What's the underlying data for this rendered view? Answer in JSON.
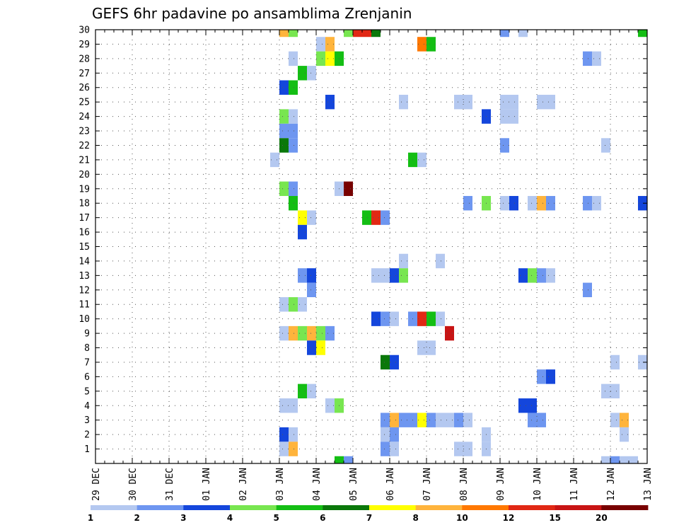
{
  "chart_data": {
    "type": "heatmap",
    "title": "GEFS 6hr padavine po ansamblima Zrenjanin",
    "x_tick_labels": [
      "29 DEC",
      "30 DEC",
      "31 DEC",
      "01 JAN",
      "02 JAN",
      "03 JAN",
      "04 JAN",
      "05 JAN",
      "06 JAN",
      "07 JAN",
      "08 JAN",
      "09 JAN",
      "10 JAN",
      "11 JAN",
      "12 JAN",
      "13 JAN"
    ],
    "x_range_days": [
      0,
      15
    ],
    "y_tick_labels": [
      "1",
      "2",
      "3",
      "4",
      "5",
      "6",
      "7",
      "8",
      "9",
      "10",
      "11",
      "12",
      "13",
      "14",
      "15",
      "16",
      "17",
      "18",
      "19",
      "20",
      "21",
      "22",
      "23",
      "24",
      "25",
      "26",
      "27",
      "28",
      "29",
      "30"
    ],
    "y_range": [
      0,
      30
    ],
    "grid": "dotted",
    "colorbar": {
      "labels": [
        "1",
        "2",
        "3",
        "4",
        "5",
        "6",
        "7",
        "8",
        "10",
        "12",
        "15",
        "20"
      ],
      "colors": [
        "#b4c8f0",
        "#6e96f0",
        "#1446dc",
        "#78e650",
        "#14be14",
        "#0a780a",
        "#ffff00",
        "#ffb43c",
        "#ff7800",
        "#e12814",
        "#c81414",
        "#780000"
      ]
    },
    "cells": [
      {
        "m": 30,
        "d": 5.0,
        "c": 8
      },
      {
        "m": 30,
        "d": 5.25,
        "c": 4
      },
      {
        "m": 30,
        "d": 6.75,
        "c": 4
      },
      {
        "m": 30,
        "d": 7.0,
        "c": 10
      },
      {
        "m": 30,
        "d": 7.25,
        "c": 10
      },
      {
        "m": 30,
        "d": 7.5,
        "c": 6
      },
      {
        "m": 30,
        "d": 11.0,
        "c": 2
      },
      {
        "m": 30,
        "d": 11.5,
        "c": 1
      },
      {
        "m": 30,
        "d": 14.75,
        "c": 5
      },
      {
        "m": 30,
        "d": 15.0,
        "c": 8
      },
      {
        "m": 29,
        "d": 6.0,
        "c": 1
      },
      {
        "m": 29,
        "d": 6.25,
        "c": 8
      },
      {
        "m": 29,
        "d": 8.75,
        "c": 9
      },
      {
        "m": 29,
        "d": 9.0,
        "c": 5
      },
      {
        "m": 28,
        "d": 5.25,
        "c": 1
      },
      {
        "m": 28,
        "d": 6.0,
        "c": 4
      },
      {
        "m": 28,
        "d": 6.25,
        "c": 7
      },
      {
        "m": 28,
        "d": 6.5,
        "c": 5
      },
      {
        "m": 28,
        "d": 13.25,
        "c": 2
      },
      {
        "m": 28,
        "d": 13.5,
        "c": 1
      },
      {
        "m": 27,
        "d": 5.5,
        "c": 5
      },
      {
        "m": 27,
        "d": 5.75,
        "c": 1
      },
      {
        "m": 26,
        "d": 5.0,
        "c": 3
      },
      {
        "m": 26,
        "d": 5.25,
        "c": 5
      },
      {
        "m": 25,
        "d": 6.25,
        "c": 3
      },
      {
        "m": 25,
        "d": 8.25,
        "c": 1
      },
      {
        "m": 25,
        "d": 9.75,
        "c": 1
      },
      {
        "m": 25,
        "d": 10.0,
        "c": 1
      },
      {
        "m": 25,
        "d": 11.0,
        "c": 1
      },
      {
        "m": 25,
        "d": 11.25,
        "c": 1
      },
      {
        "m": 25,
        "d": 12.0,
        "c": 1
      },
      {
        "m": 25,
        "d": 12.25,
        "c": 1
      },
      {
        "m": 24,
        "d": 5.0,
        "c": 4
      },
      {
        "m": 24,
        "d": 5.25,
        "c": 1
      },
      {
        "m": 24,
        "d": 10.5,
        "c": 3
      },
      {
        "m": 24,
        "d": 11.0,
        "c": 1
      },
      {
        "m": 24,
        "d": 11.25,
        "c": 1
      },
      {
        "m": 23,
        "d": 5.0,
        "c": 2
      },
      {
        "m": 23,
        "d": 5.25,
        "c": 2
      },
      {
        "m": 22,
        "d": 5.0,
        "c": 6
      },
      {
        "m": 22,
        "d": 5.25,
        "c": 2
      },
      {
        "m": 22,
        "d": 11.0,
        "c": 2
      },
      {
        "m": 22,
        "d": 13.75,
        "c": 1
      },
      {
        "m": 21,
        "d": 4.75,
        "c": 1
      },
      {
        "m": 21,
        "d": 8.5,
        "c": 5
      },
      {
        "m": 21,
        "d": 8.75,
        "c": 1
      },
      {
        "m": 19,
        "d": 5.0,
        "c": 4
      },
      {
        "m": 19,
        "d": 5.25,
        "c": 2
      },
      {
        "m": 19,
        "d": 6.5,
        "c": 1
      },
      {
        "m": 19,
        "d": 6.75,
        "c": 12
      },
      {
        "m": 18,
        "d": 5.25,
        "c": 5
      },
      {
        "m": 18,
        "d": 10.0,
        "c": 2
      },
      {
        "m": 18,
        "d": 10.5,
        "c": 4
      },
      {
        "m": 18,
        "d": 11.0,
        "c": 1
      },
      {
        "m": 18,
        "d": 11.25,
        "c": 3
      },
      {
        "m": 18,
        "d": 11.75,
        "c": 1
      },
      {
        "m": 18,
        "d": 12.0,
        "c": 8
      },
      {
        "m": 18,
        "d": 12.25,
        "c": 2
      },
      {
        "m": 18,
        "d": 13.25,
        "c": 2
      },
      {
        "m": 18,
        "d": 13.5,
        "c": 1
      },
      {
        "m": 18,
        "d": 14.75,
        "c": 3
      },
      {
        "m": 18,
        "d": 15.0,
        "c": 4
      },
      {
        "m": 17,
        "d": 5.5,
        "c": 7
      },
      {
        "m": 17,
        "d": 5.75,
        "c": 1
      },
      {
        "m": 17,
        "d": 7.25,
        "c": 5
      },
      {
        "m": 17,
        "d": 7.5,
        "c": 10
      },
      {
        "m": 17,
        "d": 7.75,
        "c": 2
      },
      {
        "m": 16,
        "d": 5.5,
        "c": 3
      },
      {
        "m": 14,
        "d": 8.25,
        "c": 1
      },
      {
        "m": 14,
        "d": 9.25,
        "c": 1
      },
      {
        "m": 13,
        "d": 5.5,
        "c": 2
      },
      {
        "m": 13,
        "d": 5.75,
        "c": 3
      },
      {
        "m": 13,
        "d": 7.5,
        "c": 1
      },
      {
        "m": 13,
        "d": 7.75,
        "c": 1
      },
      {
        "m": 13,
        "d": 8.0,
        "c": 3
      },
      {
        "m": 13,
        "d": 8.25,
        "c": 4
      },
      {
        "m": 13,
        "d": 11.5,
        "c": 3
      },
      {
        "m": 13,
        "d": 11.75,
        "c": 4
      },
      {
        "m": 13,
        "d": 12.0,
        "c": 2
      },
      {
        "m": 13,
        "d": 12.25,
        "c": 1
      },
      {
        "m": 12,
        "d": 5.75,
        "c": 2
      },
      {
        "m": 12,
        "d": 13.25,
        "c": 2
      },
      {
        "m": 11,
        "d": 5.0,
        "c": 1
      },
      {
        "m": 11,
        "d": 5.25,
        "c": 4
      },
      {
        "m": 11,
        "d": 5.5,
        "c": 1
      },
      {
        "m": 10,
        "d": 7.5,
        "c": 3
      },
      {
        "m": 10,
        "d": 7.75,
        "c": 2
      },
      {
        "m": 10,
        "d": 8.0,
        "c": 1
      },
      {
        "m": 10,
        "d": 8.5,
        "c": 2
      },
      {
        "m": 10,
        "d": 8.75,
        "c": 10
      },
      {
        "m": 10,
        "d": 9.0,
        "c": 5
      },
      {
        "m": 10,
        "d": 9.25,
        "c": 1
      },
      {
        "m": 10,
        "d": 15.0,
        "c": 4
      },
      {
        "m": 9,
        "d": 5.0,
        "c": 1
      },
      {
        "m": 9,
        "d": 5.25,
        "c": 8
      },
      {
        "m": 9,
        "d": 5.5,
        "c": 4
      },
      {
        "m": 9,
        "d": 5.75,
        "c": 8
      },
      {
        "m": 9,
        "d": 6.0,
        "c": 4
      },
      {
        "m": 9,
        "d": 6.25,
        "c": 2
      },
      {
        "m": 9,
        "d": 9.5,
        "c": 11
      },
      {
        "m": 8,
        "d": 5.75,
        "c": 3
      },
      {
        "m": 8,
        "d": 6.0,
        "c": 7
      },
      {
        "m": 8,
        "d": 8.75,
        "c": 1
      },
      {
        "m": 8,
        "d": 9.0,
        "c": 1
      },
      {
        "m": 7,
        "d": 7.75,
        "c": 6
      },
      {
        "m": 7,
        "d": 8.0,
        "c": 3
      },
      {
        "m": 7,
        "d": 14.0,
        "c": 1
      },
      {
        "m": 7,
        "d": 14.75,
        "c": 1
      },
      {
        "m": 6,
        "d": 12.0,
        "c": 2
      },
      {
        "m": 6,
        "d": 12.25,
        "c": 3
      },
      {
        "m": 5,
        "d": 5.5,
        "c": 5
      },
      {
        "m": 5,
        "d": 5.75,
        "c": 1
      },
      {
        "m": 5,
        "d": 13.75,
        "c": 1
      },
      {
        "m": 5,
        "d": 14.0,
        "c": 1
      },
      {
        "m": 4,
        "d": 5.0,
        "c": 1
      },
      {
        "m": 4,
        "d": 5.25,
        "c": 1
      },
      {
        "m": 4,
        "d": 6.25,
        "c": 1
      },
      {
        "m": 4,
        "d": 6.5,
        "c": 4
      },
      {
        "m": 4,
        "d": 11.5,
        "c": 3
      },
      {
        "m": 4,
        "d": 11.75,
        "c": 3
      },
      {
        "m": 3,
        "d": 7.75,
        "c": 2
      },
      {
        "m": 3,
        "d": 8.0,
        "c": 8
      },
      {
        "m": 3,
        "d": 8.25,
        "c": 2
      },
      {
        "m": 3,
        "d": 8.5,
        "c": 2
      },
      {
        "m": 3,
        "d": 8.75,
        "c": 7
      },
      {
        "m": 3,
        "d": 9.0,
        "c": 2
      },
      {
        "m": 3,
        "d": 9.25,
        "c": 1
      },
      {
        "m": 3,
        "d": 9.5,
        "c": 1
      },
      {
        "m": 3,
        "d": 9.75,
        "c": 2
      },
      {
        "m": 3,
        "d": 10.0,
        "c": 1
      },
      {
        "m": 3,
        "d": 11.75,
        "c": 2
      },
      {
        "m": 3,
        "d": 12.0,
        "c": 2
      },
      {
        "m": 3,
        "d": 14.0,
        "c": 1
      },
      {
        "m": 3,
        "d": 14.25,
        "c": 8
      },
      {
        "m": 2,
        "d": 5.0,
        "c": 3
      },
      {
        "m": 2,
        "d": 5.25,
        "c": 1
      },
      {
        "m": 2,
        "d": 7.75,
        "c": 1
      },
      {
        "m": 2,
        "d": 8.0,
        "c": 2
      },
      {
        "m": 2,
        "d": 10.5,
        "c": 1
      },
      {
        "m": 2,
        "d": 14.25,
        "c": 1
      },
      {
        "m": 1,
        "d": 5.0,
        "c": 1
      },
      {
        "m": 1,
        "d": 5.25,
        "c": 8
      },
      {
        "m": 1,
        "d": 7.75,
        "c": 2
      },
      {
        "m": 1,
        "d": 8.0,
        "c": 1
      },
      {
        "m": 1,
        "d": 9.75,
        "c": 1
      },
      {
        "m": 1,
        "d": 10.0,
        "c": 1
      },
      {
        "m": 1,
        "d": 10.5,
        "c": 1
      },
      {
        "m": 0,
        "d": 6.5,
        "c": 5
      },
      {
        "m": 0,
        "d": 6.75,
        "c": 2
      },
      {
        "m": 0,
        "d": 13.75,
        "c": 1
      },
      {
        "m": 0,
        "d": 14.0,
        "c": 2
      },
      {
        "m": 0,
        "d": 14.25,
        "c": 1
      },
      {
        "m": 0,
        "d": 14.5,
        "c": 1
      }
    ]
  }
}
